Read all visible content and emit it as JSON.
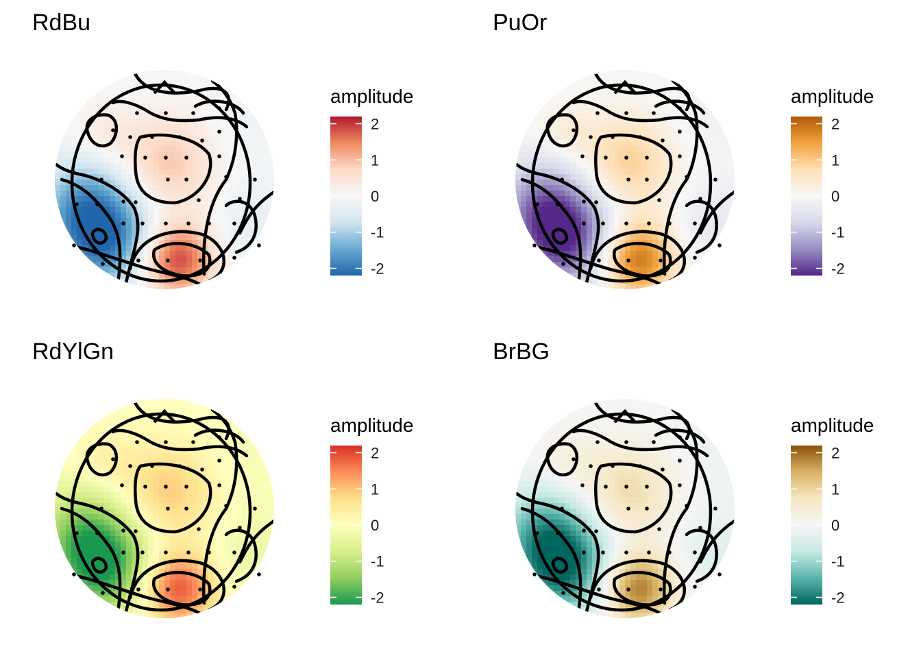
{
  "chart_data": [
    {
      "type": "heatmap",
      "title": "RdBu",
      "legend_title": "amplitude",
      "scale_ticks": [
        2,
        1,
        0,
        -1,
        -2
      ],
      "scale_range": [
        -2.2,
        2.2
      ],
      "colors": [
        "#b2182b",
        "#ef8a62",
        "#fddbc7",
        "#f7f7f7",
        "#d1e5f0",
        "#67a9cf",
        "#2166ac"
      ],
      "legend_position": "right",
      "grid": false
    },
    {
      "type": "heatmap",
      "title": "PuOr",
      "legend_title": "amplitude",
      "scale_ticks": [
        2,
        1,
        0,
        -1,
        -2
      ],
      "scale_range": [
        -2.2,
        2.2
      ],
      "colors": [
        "#b35806",
        "#f1a340",
        "#fee0b6",
        "#f7f7f7",
        "#d8daeb",
        "#998ec3",
        "#542788"
      ],
      "legend_position": "right",
      "grid": false
    },
    {
      "type": "heatmap",
      "title": "RdYlGn",
      "legend_title": "amplitude",
      "scale_ticks": [
        2,
        1,
        0,
        -1,
        -2
      ],
      "scale_range": [
        -2.2,
        2.2
      ],
      "colors": [
        "#d73027",
        "#fc8d59",
        "#fee08b",
        "#ffffbf",
        "#d9ef8b",
        "#91cf60",
        "#1a9850"
      ],
      "legend_position": "right",
      "grid": false
    },
    {
      "type": "heatmap",
      "title": "BrBG",
      "legend_title": "amplitude",
      "scale_ticks": [
        2,
        1,
        0,
        -1,
        -2
      ],
      "scale_range": [
        -2.2,
        2.2
      ],
      "colors": [
        "#8c510a",
        "#d8b365",
        "#f6e8c3",
        "#f5f5f5",
        "#c7eae5",
        "#5ab4ac",
        "#01665e"
      ],
      "legend_position": "right",
      "grid": false
    }
  ]
}
